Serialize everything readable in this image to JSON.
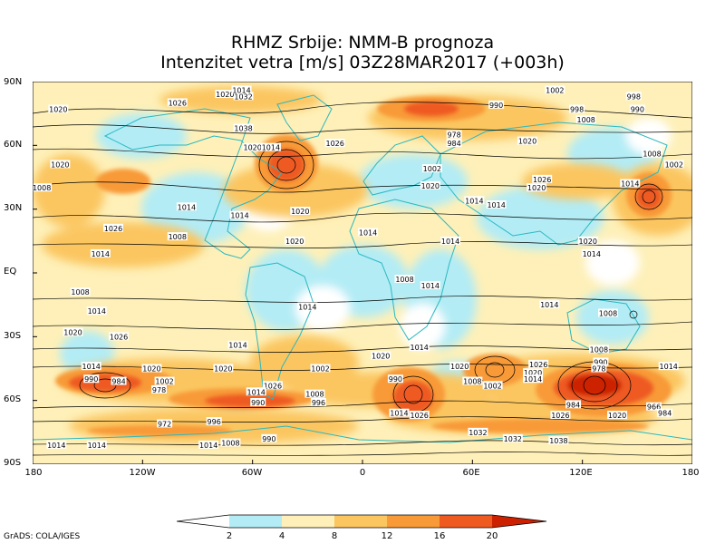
{
  "title_line1": "RHMZ Srbije: NMM-B prognoza",
  "title_line2": "Intenzitet vetra [m/s] 03Z28MAR2017 (+003h)",
  "footer": "GrADS: COLA/IGES",
  "lat_labels": [
    "90N",
    "60N",
    "30N",
    "EQ",
    "30S",
    "60S",
    "90S"
  ],
  "lon_labels": [
    "180",
    "120W",
    "60W",
    "0",
    "60E",
    "120E",
    "180"
  ],
  "colorbar": {
    "ticks": [
      "2",
      "4",
      "8",
      "12",
      "16",
      "20"
    ],
    "colors": [
      "#ffffff",
      "#b3ecf5",
      "#fef0b8",
      "#fbc660",
      "#f89a38",
      "#ee5a20",
      "#cc2000"
    ]
  },
  "pressure_labels": [
    {
      "text": "1020",
      "lon": -166,
      "lat": 77
    },
    {
      "text": "1026",
      "lon": -101,
      "lat": 80
    },
    {
      "text": "1032",
      "lon": -65,
      "lat": 83
    },
    {
      "text": "1020",
      "lon": -75,
      "lat": 84
    },
    {
      "text": "1014",
      "lon": -66,
      "lat": 86
    },
    {
      "text": "1038",
      "lon": -65,
      "lat": 68
    },
    {
      "text": "1020",
      "lon": -60,
      "lat": 59
    },
    {
      "text": "1014",
      "lon": -50,
      "lat": 59
    },
    {
      "text": "1026",
      "lon": -15,
      "lat": 61
    },
    {
      "text": "978",
      "lon": 50,
      "lat": 65
    },
    {
      "text": "984",
      "lon": 50,
      "lat": 61
    },
    {
      "text": "1002",
      "lon": 38,
      "lat": 49
    },
    {
      "text": "1020",
      "lon": 90,
      "lat": 62
    },
    {
      "text": "990",
      "lon": 73,
      "lat": 79
    },
    {
      "text": "1002",
      "lon": 105,
      "lat": 86
    },
    {
      "text": "998",
      "lon": 148,
      "lat": 83
    },
    {
      "text": "990",
      "lon": 150,
      "lat": 77
    },
    {
      "text": "998",
      "lon": 117,
      "lat": 77
    },
    {
      "text": "1008",
      "lon": 122,
      "lat": 72
    },
    {
      "text": "1008",
      "lon": 158,
      "lat": 56
    },
    {
      "text": "1002",
      "lon": 170,
      "lat": 51
    },
    {
      "text": "1014",
      "lon": 146,
      "lat": 42
    },
    {
      "text": "1026",
      "lon": 98,
      "lat": 44
    },
    {
      "text": "1020",
      "lon": 95,
      "lat": 40
    },
    {
      "text": "1020",
      "lon": 37,
      "lat": 41
    },
    {
      "text": "1014",
      "lon": 61,
      "lat": 34
    },
    {
      "text": "1014",
      "lon": 73,
      "lat": 32
    },
    {
      "text": "1020",
      "lon": -165,
      "lat": 51
    },
    {
      "text": "1008",
      "lon": -175,
      "lat": 40
    },
    {
      "text": "1014",
      "lon": -96,
      "lat": 31
    },
    {
      "text": "1014",
      "lon": -67,
      "lat": 27
    },
    {
      "text": "1008",
      "lon": -101,
      "lat": 17
    },
    {
      "text": "1020",
      "lon": -37,
      "lat": 15
    },
    {
      "text": "1020",
      "lon": -34,
      "lat": 29
    },
    {
      "text": "1014",
      "lon": 3,
      "lat": 19
    },
    {
      "text": "1014",
      "lon": 48,
      "lat": 15
    },
    {
      "text": "1020",
      "lon": 123,
      "lat": 15
    },
    {
      "text": "1014",
      "lon": 125,
      "lat": 9
    },
    {
      "text": "1014",
      "lon": -143,
      "lat": 9
    },
    {
      "text": "1026",
      "lon": -136,
      "lat": 21
    },
    {
      "text": "1008",
      "lon": 23,
      "lat": -3
    },
    {
      "text": "1014",
      "lon": 37,
      "lat": -6
    },
    {
      "text": "1008",
      "lon": -154,
      "lat": -9
    },
    {
      "text": "1014",
      "lon": -145,
      "lat": -18
    },
    {
      "text": "1014",
      "lon": -30,
      "lat": -16
    },
    {
      "text": "1008",
      "lon": 134,
      "lat": -19
    },
    {
      "text": "1014",
      "lon": 102,
      "lat": -15
    },
    {
      "text": "1020",
      "lon": -158,
      "lat": -28
    },
    {
      "text": "1026",
      "lon": -133,
      "lat": -30
    },
    {
      "text": "1014",
      "lon": -68,
      "lat": -34
    },
    {
      "text": "1014",
      "lon": 31,
      "lat": -35
    },
    {
      "text": "1020",
      "lon": 10,
      "lat": -39
    },
    {
      "text": "1008",
      "lon": 129,
      "lat": -36
    },
    {
      "text": "990",
      "lon": 130,
      "lat": -42
    },
    {
      "text": "978",
      "lon": 129,
      "lat": -45
    },
    {
      "text": "1014",
      "lon": 167,
      "lat": -44
    },
    {
      "text": "1014",
      "lon": -148,
      "lat": -44
    },
    {
      "text": "1020",
      "lon": -115,
      "lat": -45
    },
    {
      "text": "990",
      "lon": -148,
      "lat": -50
    },
    {
      "text": "984",
      "lon": -133,
      "lat": -51
    },
    {
      "text": "978",
      "lon": -111,
      "lat": -55
    },
    {
      "text": "1002",
      "lon": -108,
      "lat": -51
    },
    {
      "text": "1020",
      "lon": -76,
      "lat": -45
    },
    {
      "text": "1002",
      "lon": -23,
      "lat": -45
    },
    {
      "text": "1020",
      "lon": 53,
      "lat": -44
    },
    {
      "text": "1008",
      "lon": 60,
      "lat": -51
    },
    {
      "text": "1002",
      "lon": 71,
      "lat": -53
    },
    {
      "text": "1026",
      "lon": 96,
      "lat": -43
    },
    {
      "text": "1020",
      "lon": 93,
      "lat": -47
    },
    {
      "text": "1014",
      "lon": 93,
      "lat": -50
    },
    {
      "text": "990",
      "lon": 18,
      "lat": -50
    },
    {
      "text": "1026",
      "lon": -49,
      "lat": -53
    },
    {
      "text": "1014",
      "lon": -58,
      "lat": -56
    },
    {
      "text": "990",
      "lon": -57,
      "lat": -61
    },
    {
      "text": "1008",
      "lon": -26,
      "lat": -57
    },
    {
      "text": "996",
      "lon": -24,
      "lat": -61
    },
    {
      "text": "972",
      "lon": -108,
      "lat": -71
    },
    {
      "text": "996",
      "lon": -81,
      "lat": -70
    },
    {
      "text": "984",
      "lon": 115,
      "lat": -62
    },
    {
      "text": "1020",
      "lon": 139,
      "lat": -67
    },
    {
      "text": "966",
      "lon": 159,
      "lat": -63
    },
    {
      "text": "984",
      "lon": 165,
      "lat": -66
    },
    {
      "text": "1026",
      "lon": 108,
      "lat": -67
    },
    {
      "text": "1014",
      "lon": 20,
      "lat": -66
    },
    {
      "text": "1026",
      "lon": 31,
      "lat": -67
    },
    {
      "text": "1032",
      "lon": 63,
      "lat": -75
    },
    {
      "text": "1032",
      "lon": 82,
      "lat": -78
    },
    {
      "text": "1038",
      "lon": 107,
      "lat": -79
    },
    {
      "text": "990",
      "lon": -51,
      "lat": -78
    },
    {
      "text": "1014",
      "lon": -84,
      "lat": -81
    },
    {
      "text": "1008",
      "lon": -72,
      "lat": -80
    },
    {
      "text": "1014",
      "lon": -145,
      "lat": -81
    },
    {
      "text": "1014",
      "lon": -167,
      "lat": -81
    }
  ]
}
